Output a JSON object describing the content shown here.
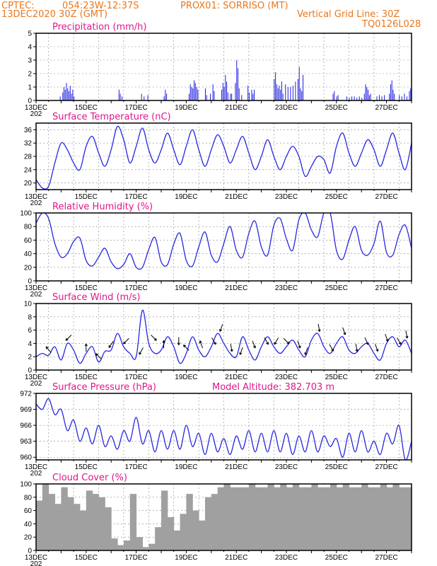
{
  "header": {
    "source": "CPTEC:",
    "location": "054:23W-12:37S",
    "point": "PROX01: SORRISO (MT)",
    "datetime": "13DEC2020 30Z (GMT)",
    "grid_note": "Vertical Grid Line: 30Z",
    "model_code": "TQ0126L028"
  },
  "colors": {
    "header": "#e8781e",
    "title": "#e0168c",
    "series": "#2727e0",
    "cloud": "#a0a0a0",
    "arrow": "#000000"
  },
  "x_axis": {
    "tick_labels": [
      "13DEC",
      "15DEC",
      "17DEC",
      "19DEC",
      "21DEC",
      "23DEC",
      "25DEC",
      "27DEC"
    ],
    "year_fragment": "202",
    "range_days": [
      0,
      15
    ],
    "label_days": [
      0,
      2,
      4,
      6,
      8,
      10,
      12,
      14
    ]
  },
  "chart_data": [
    {
      "type": "bar",
      "title": "Precipitation (mm/h)",
      "ylim": [
        0,
        5
      ],
      "yticks": [
        0,
        1,
        2,
        3,
        4,
        5
      ],
      "grid": true,
      "events": [
        [
          0.95,
          0.3
        ],
        [
          1.05,
          0.6
        ],
        [
          1.1,
          1.0
        ],
        [
          1.15,
          0.8
        ],
        [
          1.2,
          1.3
        ],
        [
          1.25,
          0.9
        ],
        [
          1.3,
          0.7
        ],
        [
          1.35,
          1.1
        ],
        [
          1.4,
          0.5
        ],
        [
          1.45,
          0.8
        ],
        [
          1.5,
          0.3
        ],
        [
          3.3,
          0.8
        ],
        [
          3.35,
          0.5
        ],
        [
          3.42,
          0.3
        ],
        [
          4.2,
          0.5
        ],
        [
          4.3,
          0.3
        ],
        [
          4.45,
          0.4
        ],
        [
          5.1,
          0.3
        ],
        [
          5.15,
          0.8
        ],
        [
          5.2,
          0.5
        ],
        [
          6.1,
          0.5
        ],
        [
          6.15,
          1.2
        ],
        [
          6.2,
          1.0
        ],
        [
          6.25,
          0.9
        ],
        [
          6.3,
          1.5
        ],
        [
          6.35,
          1.3
        ],
        [
          6.4,
          1.0
        ],
        [
          6.45,
          0.8
        ],
        [
          6.75,
          0.9
        ],
        [
          6.8,
          0.4
        ],
        [
          6.95,
          0.5
        ],
        [
          7.05,
          1.2
        ],
        [
          7.1,
          0.7
        ],
        [
          7.4,
          0.8
        ],
        [
          7.45,
          1.3
        ],
        [
          7.5,
          1.0
        ],
        [
          7.55,
          1.9
        ],
        [
          7.6,
          1.4
        ],
        [
          7.65,
          0.6
        ],
        [
          7.75,
          0.5
        ],
        [
          7.8,
          0.5
        ],
        [
          7.95,
          1.3
        ],
        [
          8.0,
          3.0
        ],
        [
          8.05,
          2.4
        ],
        [
          8.1,
          0.9
        ],
        [
          8.2,
          0.4
        ],
        [
          8.45,
          1.1
        ],
        [
          8.5,
          0.6
        ],
        [
          8.6,
          0.8
        ],
        [
          8.65,
          0.5
        ],
        [
          8.7,
          0.8
        ],
        [
          9.5,
          1.6
        ],
        [
          9.55,
          2.1
        ],
        [
          9.6,
          1.2
        ],
        [
          9.65,
          0.9
        ],
        [
          9.7,
          1.1
        ],
        [
          9.75,
          0.8
        ],
        [
          9.8,
          1.4
        ],
        [
          9.85,
          0.5
        ],
        [
          9.95,
          1.2
        ],
        [
          10.05,
          1.0
        ],
        [
          10.15,
          1.0
        ],
        [
          10.25,
          1.1
        ],
        [
          10.35,
          1.4
        ],
        [
          10.45,
          1.6
        ],
        [
          10.5,
          2.5
        ],
        [
          10.55,
          0.9
        ],
        [
          10.6,
          0.7
        ],
        [
          10.65,
          1.9
        ],
        [
          11.85,
          0.5
        ],
        [
          11.9,
          0.7
        ],
        [
          12.0,
          0.3
        ],
        [
          12.05,
          0.4
        ],
        [
          12.4,
          0.3
        ],
        [
          12.5,
          0.2
        ],
        [
          12.6,
          0.3
        ],
        [
          12.7,
          0.3
        ],
        [
          12.8,
          0.2
        ],
        [
          12.9,
          0.3
        ],
        [
          13.0,
          0.2
        ],
        [
          13.1,
          0.5
        ],
        [
          13.15,
          1.2
        ],
        [
          13.2,
          1.0
        ],
        [
          13.25,
          0.8
        ],
        [
          13.3,
          0.4
        ],
        [
          13.35,
          0.5
        ],
        [
          13.6,
          0.3
        ],
        [
          13.7,
          0.4
        ],
        [
          13.8,
          0.3
        ],
        [
          13.9,
          0.4
        ],
        [
          14.1,
          0.5
        ],
        [
          14.15,
          1.2
        ],
        [
          14.2,
          1.5
        ],
        [
          14.25,
          0.8
        ],
        [
          14.3,
          0.5
        ],
        [
          14.5,
          0.4
        ],
        [
          14.6,
          0.3
        ],
        [
          14.7,
          0.5
        ],
        [
          14.8,
          0.3
        ],
        [
          14.9,
          0.7
        ],
        [
          14.95,
          0.9
        ]
      ]
    },
    {
      "type": "line",
      "title": "Surface Temperature (nC)",
      "ylim": [
        18,
        38
      ],
      "yticks": [
        20,
        24,
        28,
        32,
        36
      ],
      "grid": true,
      "x": [
        0,
        0.25,
        0.5,
        0.75,
        1.0,
        1.25,
        1.5,
        1.75,
        2.0,
        2.25,
        2.5,
        2.75,
        3.0,
        3.25,
        3.5,
        3.75,
        4.0,
        4.25,
        4.5,
        4.75,
        5.0,
        5.25,
        5.5,
        5.75,
        6.0,
        6.25,
        6.5,
        6.75,
        7.0,
        7.25,
        7.5,
        7.75,
        8.0,
        8.25,
        8.5,
        8.75,
        9.0,
        9.25,
        9.5,
        9.75,
        10.0,
        10.25,
        10.5,
        10.75,
        11.0,
        11.25,
        11.5,
        11.75,
        12.0,
        12.25,
        12.5,
        12.75,
        13.0,
        13.25,
        13.5,
        13.75,
        14.0,
        14.25,
        14.5,
        14.75,
        15.0
      ],
      "values": [
        21,
        18.5,
        19,
        26,
        32,
        30,
        26,
        24,
        31,
        34,
        29,
        25,
        30,
        37,
        33,
        26,
        31,
        36.5,
        30,
        26,
        30,
        35,
        30,
        25.5,
        31,
        36,
        30,
        25,
        30,
        34.5,
        31,
        26,
        30,
        34,
        29,
        24,
        28,
        33,
        28,
        24,
        28,
        31,
        28,
        22,
        25,
        28,
        27,
        23,
        31,
        35,
        29,
        25,
        29,
        33,
        30,
        25,
        30,
        35,
        29,
        24,
        32
      ]
    },
    {
      "type": "line",
      "title": "Relative Humidity (%)",
      "ylim": [
        0,
        100
      ],
      "yticks": [
        0,
        20,
        40,
        60,
        80,
        100
      ],
      "grid": true,
      "x": [
        0,
        0.25,
        0.5,
        0.75,
        1.0,
        1.25,
        1.5,
        1.75,
        2.0,
        2.25,
        2.5,
        2.75,
        3.0,
        3.25,
        3.5,
        3.75,
        4.0,
        4.25,
        4.5,
        4.75,
        5.0,
        5.25,
        5.5,
        5.75,
        6.0,
        6.25,
        6.5,
        6.75,
        7.0,
        7.25,
        7.5,
        7.75,
        8.0,
        8.25,
        8.5,
        8.75,
        9.0,
        9.25,
        9.5,
        9.75,
        10.0,
        10.25,
        10.5,
        10.75,
        11.0,
        11.25,
        11.5,
        11.75,
        12.0,
        12.25,
        12.5,
        12.75,
        13.0,
        13.25,
        13.5,
        13.75,
        14.0,
        14.25,
        14.5,
        14.75,
        15.0
      ],
      "values": [
        85,
        100,
        92,
        55,
        35,
        40,
        58,
        63,
        30,
        22,
        35,
        48,
        28,
        18,
        24,
        40,
        20,
        20,
        46,
        64,
        28,
        24,
        54,
        70,
        30,
        22,
        50,
        72,
        38,
        28,
        55,
        80,
        45,
        35,
        70,
        88,
        50,
        38,
        82,
        92,
        62,
        45,
        90,
        100,
        75,
        65,
        100,
        100,
        45,
        32,
        60,
        80,
        45,
        38,
        55,
        88,
        42,
        38,
        68,
        82,
        48
      ]
    },
    {
      "type": "line",
      "title": "Surface Wind (m/s)",
      "ylim": [
        0,
        10
      ],
      "yticks": [
        0,
        2,
        4,
        6,
        8,
        10
      ],
      "grid": true,
      "x": [
        0,
        0.25,
        0.5,
        0.75,
        1.0,
        1.25,
        1.5,
        1.75,
        2.0,
        2.25,
        2.5,
        2.75,
        3.0,
        3.25,
        3.5,
        3.75,
        4.0,
        4.25,
        4.5,
        4.75,
        5.0,
        5.25,
        5.5,
        5.75,
        6.0,
        6.25,
        6.5,
        6.75,
        7.0,
        7.25,
        7.5,
        7.75,
        8.0,
        8.25,
        8.5,
        8.75,
        9.0,
        9.25,
        9.5,
        9.75,
        10.0,
        10.25,
        10.5,
        10.75,
        11.0,
        11.25,
        11.5,
        11.75,
        12.0,
        12.25,
        12.5,
        12.75,
        13.0,
        13.25,
        13.5,
        13.75,
        14.0,
        14.25,
        14.5,
        14.75,
        15.0
      ],
      "values": [
        2.0,
        2.5,
        2.2,
        3.5,
        1.5,
        4.0,
        3.0,
        1.0,
        2.5,
        3.5,
        1.2,
        2.8,
        3.0,
        5.5,
        3.5,
        2.5,
        2.0,
        9.0,
        4.0,
        2.5,
        3.0,
        5.0,
        3.5,
        1.0,
        2.5,
        5.0,
        3.0,
        2.0,
        3.5,
        5.5,
        4.0,
        2.5,
        2.0,
        5.0,
        3.0,
        1.5,
        3.5,
        5.0,
        3.5,
        2.5,
        3.5,
        4.5,
        3.0,
        2.0,
        4.5,
        5.5,
        3.5,
        2.5,
        4.0,
        5.0,
        3.0,
        2.5,
        3.5,
        4.0,
        2.5,
        1.5,
        4.0,
        5.0,
        3.5,
        4.5,
        2.5
      ],
      "arrows": [
        [
          0.5,
          320
        ],
        [
          1.3,
          225
        ],
        [
          2.0,
          0
        ],
        [
          2.5,
          315
        ],
        [
          3.0,
          215
        ],
        [
          3.6,
          225
        ],
        [
          4.2,
          210
        ],
        [
          4.7,
          135
        ],
        [
          5.1,
          0
        ],
        [
          5.7,
          180
        ],
        [
          6.0,
          315
        ],
        [
          6.6,
          340
        ],
        [
          7.1,
          150
        ],
        [
          7.4,
          200
        ],
        [
          7.8,
          170
        ],
        [
          8.2,
          200
        ],
        [
          8.7,
          160
        ],
        [
          9.2,
          150
        ],
        [
          9.6,
          210
        ],
        [
          10.0,
          135
        ],
        [
          10.5,
          160
        ],
        [
          10.8,
          200
        ],
        [
          11.3,
          170
        ],
        [
          11.8,
          150
        ],
        [
          12.3,
          160
        ],
        [
          12.8,
          170
        ],
        [
          13.2,
          155
        ],
        [
          13.6,
          160
        ],
        [
          14.0,
          160
        ],
        [
          14.5,
          150
        ],
        [
          14.8,
          170
        ]
      ]
    },
    {
      "type": "line",
      "title": "Surface Pressure (hPa)",
      "annotation": "Model Altitude: 382.703 m",
      "ylim": [
        959.5,
        972
      ],
      "yticks": [
        960,
        963,
        966,
        969,
        972
      ],
      "grid": true,
      "x": [
        0,
        0.25,
        0.5,
        0.75,
        1.0,
        1.25,
        1.5,
        1.75,
        2.0,
        2.25,
        2.5,
        2.75,
        3.0,
        3.25,
        3.5,
        3.75,
        4.0,
        4.25,
        4.5,
        4.75,
        5.0,
        5.25,
        5.5,
        5.75,
        6.0,
        6.25,
        6.5,
        6.75,
        7.0,
        7.25,
        7.5,
        7.75,
        8.0,
        8.25,
        8.5,
        8.75,
        9.0,
        9.25,
        9.5,
        9.75,
        10.0,
        10.25,
        10.5,
        10.75,
        11.0,
        11.25,
        11.5,
        11.75,
        12.0,
        12.25,
        12.5,
        12.75,
        13.0,
        13.25,
        13.5,
        13.75,
        14.0,
        14.25,
        14.5,
        14.75,
        15.0
      ],
      "values": [
        970,
        969,
        971,
        968,
        969,
        965,
        967,
        963,
        965.5,
        962.5,
        966,
        962,
        964,
        961.5,
        965,
        963,
        967.5,
        962.5,
        965,
        961,
        965,
        961.5,
        965,
        961.5,
        966,
        962,
        964.5,
        960.5,
        964.5,
        961,
        963.5,
        960.5,
        964,
        961.5,
        965,
        961,
        964.5,
        961,
        965,
        961,
        964.5,
        960.5,
        964,
        961,
        965,
        961,
        964,
        962,
        963.5,
        960,
        964.5,
        961,
        965,
        961,
        963,
        960.5,
        964.5,
        962.5,
        966,
        959.5,
        963
      ]
    },
    {
      "type": "bar",
      "title": "Cloud Cover (%)",
      "ylim": [
        0,
        100
      ],
      "yticks": [
        0,
        20,
        40,
        60,
        80,
        100
      ],
      "grid": true,
      "x": [
        0,
        0.25,
        0.5,
        0.75,
        1.0,
        1.25,
        1.5,
        1.75,
        2.0,
        2.25,
        2.5,
        2.75,
        3.0,
        3.25,
        3.5,
        3.75,
        4.0,
        4.25,
        4.5,
        4.75,
        5.0,
        5.25,
        5.5,
        5.75,
        6.0,
        6.25,
        6.5,
        6.75,
        7.0,
        7.25,
        7.5,
        7.75,
        8.0,
        8.25,
        8.5,
        8.75,
        9.0,
        9.25,
        9.5,
        9.75,
        10.0,
        10.25,
        10.5,
        10.75,
        11.0,
        11.25,
        11.5,
        11.75,
        12.0,
        12.25,
        12.5,
        12.75,
        13.0,
        13.25,
        13.5,
        13.75,
        14.0,
        14.25,
        14.5,
        14.75
      ],
      "values": [
        75,
        100,
        85,
        70,
        95,
        80,
        70,
        60,
        90,
        85,
        80,
        65,
        18,
        8,
        15,
        85,
        20,
        5,
        10,
        35,
        90,
        50,
        30,
        55,
        85,
        60,
        45,
        80,
        85,
        95,
        100,
        95,
        95,
        95,
        100,
        95,
        95,
        100,
        95,
        100,
        95,
        100,
        95,
        95,
        100,
        95,
        95,
        100,
        95,
        100,
        95,
        95,
        100,
        95,
        95,
        100,
        95,
        100,
        95,
        95
      ]
    }
  ]
}
